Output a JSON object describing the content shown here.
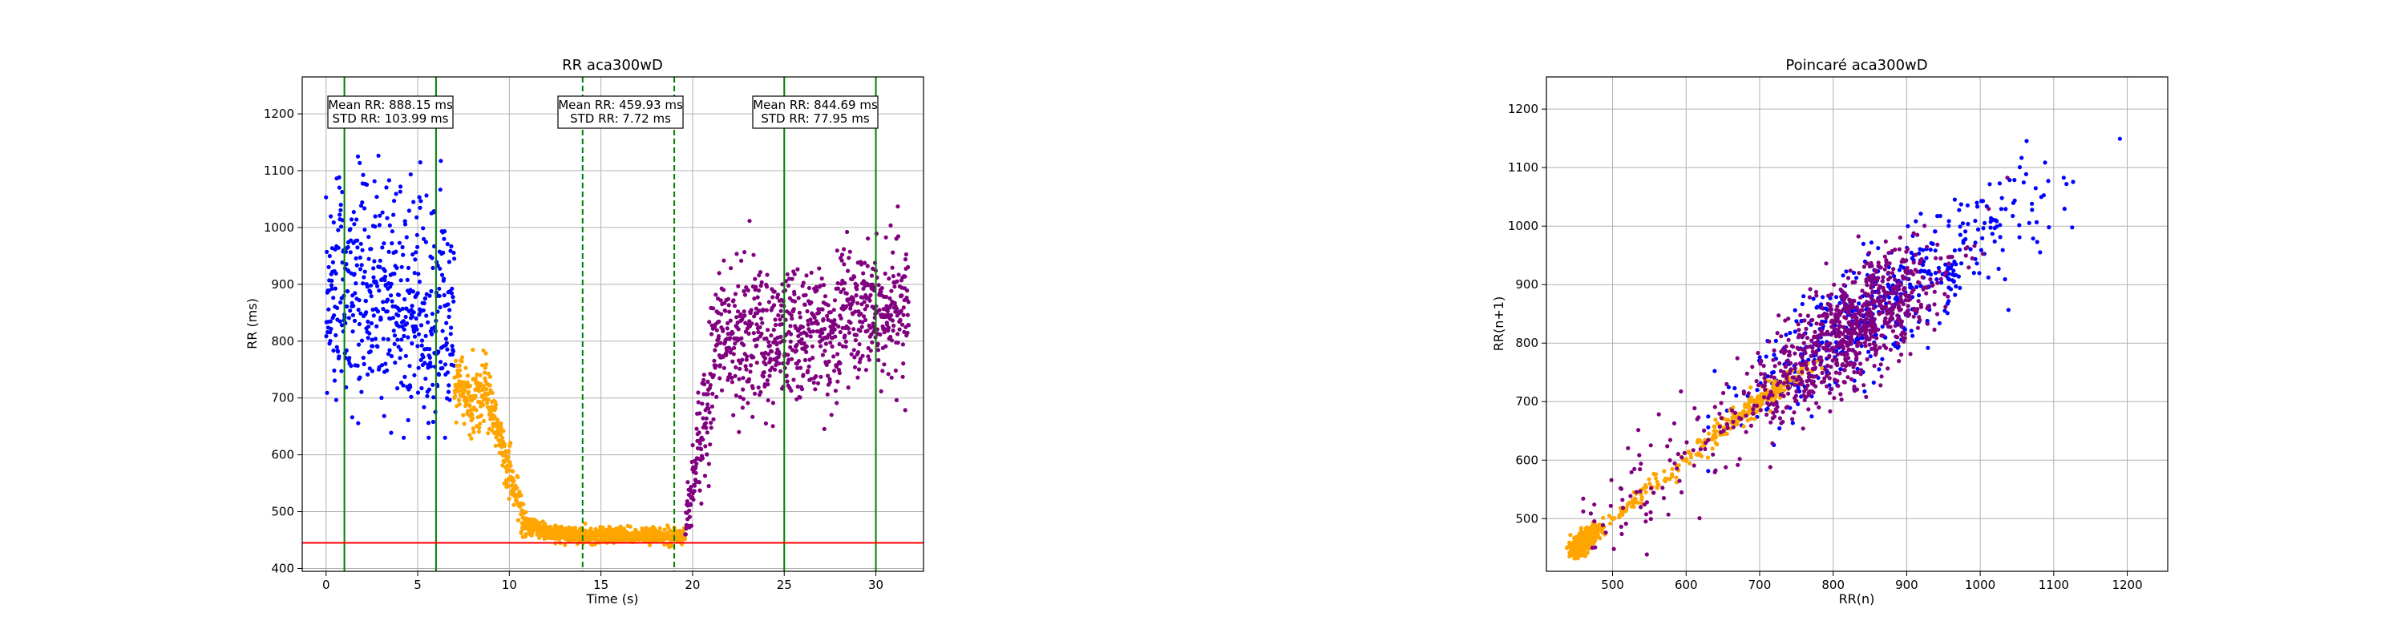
{
  "colors": {
    "segment_rest": "#0000ff",
    "segment_exercise": "#ffa500",
    "segment_recovery": "#800080",
    "window_line": "#008000",
    "threshold_line": "#ff0000",
    "grid": "#b0b0b0"
  },
  "chart_data": [
    {
      "type": "scatter",
      "title": "RR aca300wD",
      "xlabel": "Time (s)",
      "ylabel": "RR (ms)",
      "xlim": [
        -1.3,
        32.6
      ],
      "ylim": [
        395,
        1265
      ],
      "xticks": [
        0,
        5,
        10,
        15,
        20,
        25,
        30
      ],
      "yticks": [
        400,
        500,
        600,
        700,
        800,
        900,
        1000,
        1100,
        1200
      ],
      "grid": true,
      "segments": [
        {
          "color_key": "segment_rest",
          "time_range": [
            0.0,
            7.0
          ],
          "mean_ms": 888.15,
          "std_ms": 103.99
        },
        {
          "color_key": "segment_exercise",
          "time_range": [
            7.0,
            19.6
          ]
        },
        {
          "color_key": "segment_recovery",
          "time_range": [
            19.6,
            31.8
          ]
        }
      ],
      "threshold_ms": 445,
      "vertical_lines": [
        {
          "x": 1,
          "style": "solid"
        },
        {
          "x": 6,
          "style": "solid"
        },
        {
          "x": 14,
          "style": "dashed"
        },
        {
          "x": 19,
          "style": "dashed"
        },
        {
          "x": 25,
          "style": "solid"
        },
        {
          "x": 30,
          "style": "solid"
        }
      ],
      "stat_boxes": [
        {
          "x_center": 2.3,
          "line1": "Mean RR: 888.15 ms",
          "line2": "STD RR: 103.99 ms"
        },
        {
          "x_center": 16.5,
          "line1": "Mean RR: 459.93 ms",
          "line2": "STD RR: 7.72 ms"
        },
        {
          "x_center": 27.5,
          "line1": "Mean RR: 844.69 ms",
          "line2": "STD RR: 77.95 ms"
        }
      ]
    },
    {
      "type": "scatter",
      "title": "Poincaré aca300wD",
      "xlabel": "RR(n)",
      "ylabel": "RR(n+1)",
      "xlim": [
        410,
        1255
      ],
      "ylim": [
        410,
        1255
      ],
      "xticks": [
        500,
        600,
        700,
        800,
        900,
        1000,
        1100,
        1200
      ],
      "yticks": [
        500,
        600,
        700,
        800,
        900,
        1000,
        1100,
        1200
      ],
      "grid": true,
      "segments": [
        {
          "color_key": "segment_rest",
          "description": "RR(n) vs RR(n+1) of rest segment"
        },
        {
          "color_key": "segment_exercise",
          "description": "RR(n) vs RR(n+1) of exercise segment"
        },
        {
          "color_key": "segment_recovery",
          "description": "RR(n) vs RR(n+1) of recovery segment"
        }
      ]
    }
  ]
}
